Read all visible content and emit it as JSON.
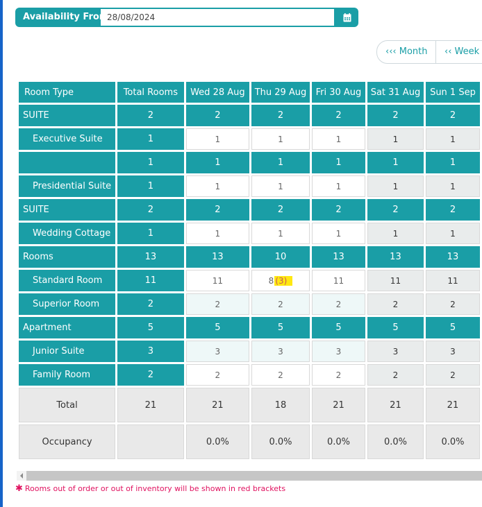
{
  "availability": {
    "label": "Availability From",
    "date_value": "28/08/2024",
    "calendar_icon": "calendar-icon"
  },
  "nav": {
    "month_label": "‹‹‹ Month",
    "week_label": "‹‹ Week"
  },
  "table": {
    "headers": [
      "Room Type",
      "Total Rooms",
      "Wed 28 Aug",
      "Thu 29 Aug",
      "Fri 30 Aug",
      "Sat 31 Aug",
      "Sun 1 Sep"
    ],
    "rows": [
      {
        "name": "SUITE",
        "total": "2",
        "days": [
          "2",
          "2",
          "2",
          "2",
          "2"
        ]
      },
      {
        "name": "Executive Suite",
        "total": "1",
        "days": [
          "1",
          "1",
          "1",
          "1",
          "1"
        ]
      },
      {
        "name": "",
        "total": "1",
        "days": [
          "1",
          "1",
          "1",
          "1",
          "1"
        ]
      },
      {
        "name": "Presidential Suite",
        "total": "1",
        "days": [
          "1",
          "1",
          "1",
          "1",
          "1"
        ]
      },
      {
        "name": "SUITE",
        "total": "2",
        "days": [
          "2",
          "2",
          "2",
          "2",
          "2"
        ]
      },
      {
        "name": "Wedding Cottage",
        "total": "1",
        "days": [
          "1",
          "1",
          "1",
          "1",
          "1"
        ]
      },
      {
        "name": "Rooms",
        "total": "13",
        "days": [
          "13",
          "10",
          "13",
          "13",
          "13"
        ]
      },
      {
        "name": "Standard Room",
        "total": "11",
        "days": [
          "11",
          "8",
          "11",
          "11",
          "11"
        ],
        "bracket": "(3)"
      },
      {
        "name": "Superior Room",
        "total": "2",
        "days": [
          "2",
          "2",
          "2",
          "2",
          "2"
        ]
      },
      {
        "name": "Apartment",
        "total": "5",
        "days": [
          "5",
          "5",
          "5",
          "5",
          "5"
        ]
      },
      {
        "name": "Junior Suite",
        "total": "3",
        "days": [
          "3",
          "3",
          "3",
          "3",
          "3"
        ]
      },
      {
        "name": "Family Room",
        "total": "2",
        "days": [
          "2",
          "2",
          "2",
          "2",
          "2"
        ]
      }
    ],
    "total_row": {
      "label": "Total",
      "total": "21",
      "days": [
        "21",
        "18",
        "21",
        "21",
        "21"
      ]
    },
    "occupancy_row": {
      "label": "Occupancy",
      "total": "",
      "days": [
        "0.0%",
        "0.0%",
        "0.0%",
        "0.0%",
        "0.0%"
      ]
    }
  },
  "note": {
    "text": "Rooms out of order or out of inventory will be shown in red brackets",
    "accent": "#e0115f"
  },
  "colors": {
    "teal": "#1a9ea6",
    "left_strip": "#1664c9"
  }
}
